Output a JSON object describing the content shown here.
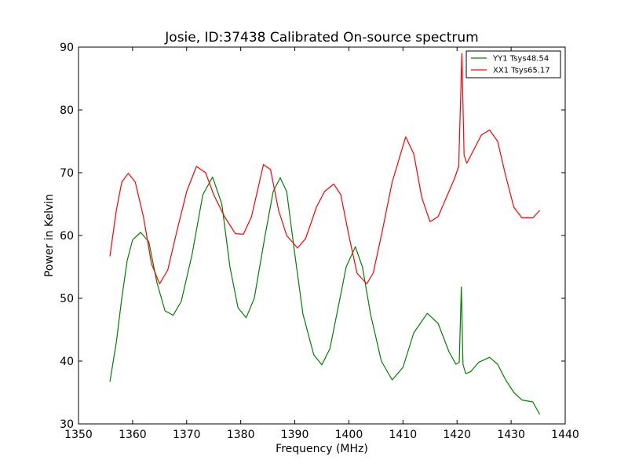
{
  "chart_data": {
    "type": "line",
    "title": "Josie, ID:37438 Calibrated On-source spectrum",
    "xlabel": "Frequency (MHz)",
    "ylabel": "Power in Kelvin",
    "xlim": [
      1350,
      1440
    ],
    "ylim": [
      30,
      90
    ],
    "xticks": [
      1350,
      1360,
      1370,
      1380,
      1390,
      1400,
      1410,
      1420,
      1430,
      1440
    ],
    "yticks": [
      30,
      40,
      50,
      60,
      70,
      80,
      90
    ],
    "grid": false,
    "legend_position": "top-right",
    "series": [
      {
        "name": "YY1 Tsys48.54",
        "color": "#008000",
        "x": [
          1355.8,
          1357,
          1358,
          1359,
          1360,
          1361.5,
          1363,
          1364.5,
          1366,
          1367.5,
          1369,
          1371,
          1373,
          1374.8,
          1376.5,
          1378,
          1379.5,
          1381,
          1382.5,
          1384.5,
          1386,
          1387.3,
          1388.5,
          1390,
          1391.5,
          1393.5,
          1395,
          1396.5,
          1398,
          1399.5,
          1401.2,
          1402.5,
          1404,
          1406,
          1408,
          1410,
          1412,
          1414.5,
          1416.5,
          1418.5,
          1419.8,
          1420.4,
          1420.8,
          1421.1,
          1421.6,
          1422.5,
          1424,
          1426,
          1427.5,
          1429,
          1430.5,
          1432,
          1434,
          1435.3
        ],
        "values": [
          36.7,
          43,
          50,
          56,
          59.3,
          60.5,
          59,
          52.5,
          48,
          47.3,
          49.5,
          57,
          66.5,
          69.3,
          65,
          55,
          48.5,
          46.9,
          50,
          60,
          67,
          69.2,
          67,
          57,
          47.5,
          41,
          39.4,
          42,
          48.5,
          55,
          58.2,
          55,
          47.5,
          40,
          37,
          39,
          44.5,
          47.6,
          46,
          41.5,
          39.5,
          39.8,
          51.8,
          39.5,
          38,
          38.3,
          39.8,
          40.6,
          39.5,
          37,
          35,
          33.8,
          33.5,
          31.5
        ]
      },
      {
        "name": "XX1 Tsys65.17",
        "color": "#ff0000",
        "x": [
          1355.8,
          1357,
          1358,
          1359.2,
          1360.5,
          1362,
          1363.5,
          1365,
          1366.5,
          1368,
          1370,
          1371.8,
          1373.5,
          1375,
          1377,
          1379,
          1380.5,
          1382,
          1384.2,
          1385.5,
          1387,
          1388.5,
          1390.5,
          1392,
          1394,
          1395.5,
          1397.2,
          1398.5,
          1400,
          1401.5,
          1403.3,
          1404.5,
          1406,
          1408,
          1410.5,
          1412,
          1413.5,
          1415,
          1416.5,
          1418,
          1419.5,
          1420.3,
          1420.9,
          1421.3,
          1421.8,
          1423,
          1424.5,
          1426,
          1427.5,
          1429,
          1430.5,
          1432,
          1434,
          1435.3
        ],
        "values": [
          56.7,
          64,
          68.5,
          69.9,
          68.5,
          63,
          55.5,
          52.3,
          54.5,
          60,
          67,
          71,
          70,
          66.5,
          63,
          60.3,
          60.2,
          63,
          71.3,
          70.5,
          64,
          60,
          58,
          59.5,
          64.5,
          67,
          68.2,
          66.5,
          60,
          54,
          52.3,
          54,
          60,
          68.5,
          75.7,
          73,
          66,
          62.2,
          63,
          66,
          69,
          71,
          89,
          72.8,
          71.5,
          73.5,
          76,
          76.8,
          75,
          69.5,
          64.5,
          62.8,
          62.8,
          64
        ]
      }
    ]
  }
}
